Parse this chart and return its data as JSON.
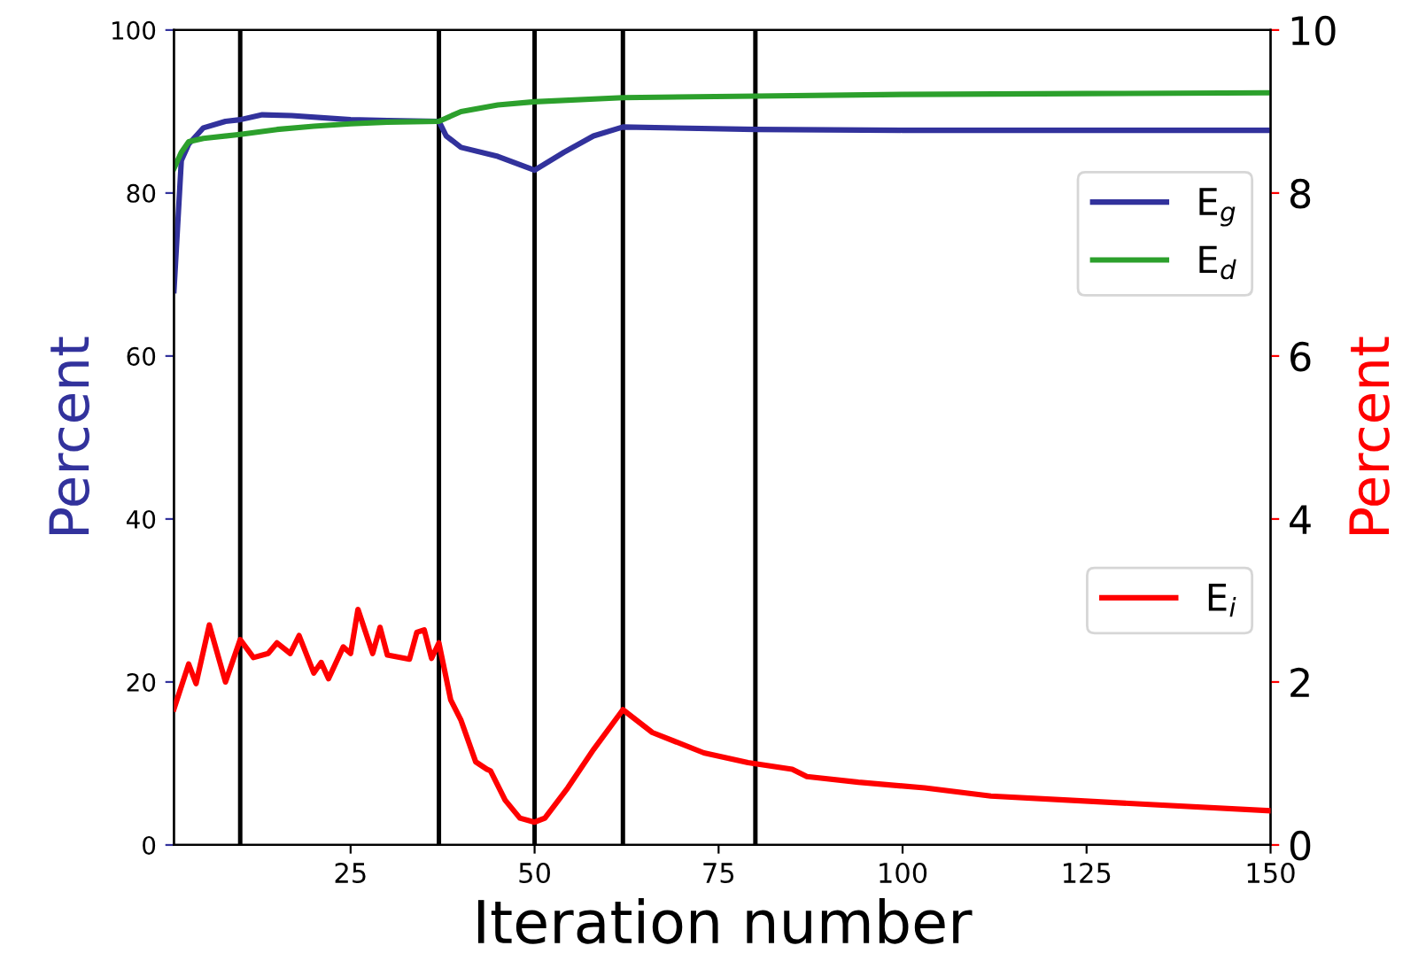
{
  "chart_data": {
    "type": "line",
    "xlabel": "Iteration number",
    "ylabel": "Percent",
    "y2label": "Percent",
    "xlim": [
      1,
      150
    ],
    "xticks": [
      25,
      50,
      75,
      100,
      125,
      150
    ],
    "ylim": [
      0,
      100
    ],
    "yticks": [
      0,
      20,
      40,
      60,
      80,
      100
    ],
    "y2lim": [
      0,
      10
    ],
    "y2ticks": [
      0,
      2,
      4,
      6,
      8,
      10
    ],
    "legend": "right",
    "grid": false,
    "marker": "none",
    "line_style": "solid",
    "ref_lines": [
      {
        "axis": "x",
        "value": 10,
        "color": "#000000"
      },
      {
        "axis": "x",
        "value": 37,
        "color": "#000000"
      },
      {
        "axis": "x",
        "value": 50,
        "color": "#000000"
      },
      {
        "axis": "x",
        "value": 62,
        "color": "#000000"
      },
      {
        "axis": "x",
        "value": 80,
        "color": "#000000"
      }
    ],
    "series": [
      {
        "name": "E$_{g}$",
        "color": "#32329c",
        "x": [
          1,
          2,
          3,
          5,
          8,
          10,
          13,
          17,
          25,
          30,
          37,
          38,
          40,
          45,
          50,
          54,
          58,
          62,
          80,
          100,
          125,
          150
        ],
        "values": [
          68,
          84,
          86,
          88,
          88.8,
          89,
          89.6,
          89.5,
          89,
          88.9,
          88.8,
          87,
          85.6,
          84.5,
          82.8,
          85,
          87,
          88.1,
          87.8,
          87.7,
          87.7,
          87.7
        ]
      },
      {
        "name": "E$_{d}$",
        "color": "#2ca02c",
        "x": [
          1,
          2,
          3,
          5,
          10,
          15,
          20,
          25,
          30,
          37,
          40,
          45,
          50,
          62,
          80,
          100,
          125,
          150
        ],
        "values": [
          83,
          85,
          86.3,
          86.7,
          87.2,
          87.8,
          88.2,
          88.5,
          88.7,
          88.8,
          90,
          90.8,
          91.2,
          91.7,
          91.9,
          92.1,
          92.2,
          92.3
        ]
      },
      {
        "name": "E$_{i}$",
        "color": "#ff0000",
        "axis": "y2",
        "x": [
          1,
          3,
          4,
          5.8,
          8,
          10,
          11.8,
          13.8,
          15,
          16.8,
          18,
          20,
          21,
          22,
          24,
          25,
          26,
          28,
          29,
          30,
          33,
          34,
          35,
          36,
          37,
          38.6,
          40,
          42,
          43.5,
          44,
          46,
          48,
          50,
          51.4,
          54.5,
          58,
          62,
          66,
          73,
          79,
          85,
          87,
          94,
          103,
          112,
          122.5,
          133,
          150
        ],
        "values": [
          1.67,
          2.22,
          1.98,
          2.7,
          2.0,
          2.52,
          2.3,
          2.35,
          2.48,
          2.35,
          2.57,
          2.11,
          2.24,
          2.04,
          2.43,
          2.35,
          2.89,
          2.35,
          2.67,
          2.33,
          2.28,
          2.61,
          2.64,
          2.29,
          2.48,
          1.78,
          1.53,
          1.02,
          0.93,
          0.91,
          0.55,
          0.33,
          0.28,
          0.33,
          0.7,
          1.17,
          1.66,
          1.38,
          1.13,
          1.01,
          0.93,
          0.84,
          0.77,
          0.7,
          0.6,
          0.55,
          0.5,
          0.42
        ]
      }
    ]
  }
}
